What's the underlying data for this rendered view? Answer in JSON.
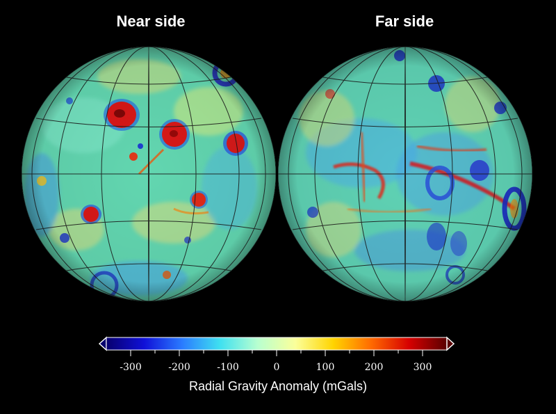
{
  "titles": {
    "near": "Near side",
    "far": "Far side"
  },
  "colorbar": {
    "label": "Radial Gravity Anomaly (mGals)",
    "min": -350,
    "max": 350,
    "ticks": [
      "-300",
      "-200",
      "-100",
      "0",
      "100",
      "200",
      "300"
    ],
    "tick_values": [
      -300,
      -200,
      -100,
      0,
      100,
      200,
      300
    ],
    "colors": [
      "#08006e",
      "#1010d8",
      "#2a7bff",
      "#3fe0f0",
      "#b8ffd0",
      "#fbff9a",
      "#ffd400",
      "#ff6a00",
      "#d60000",
      "#5a0000"
    ]
  },
  "map": {
    "background": "#000000",
    "base_color": "#60d9b0",
    "grid_color": "#1a1a1a"
  }
}
